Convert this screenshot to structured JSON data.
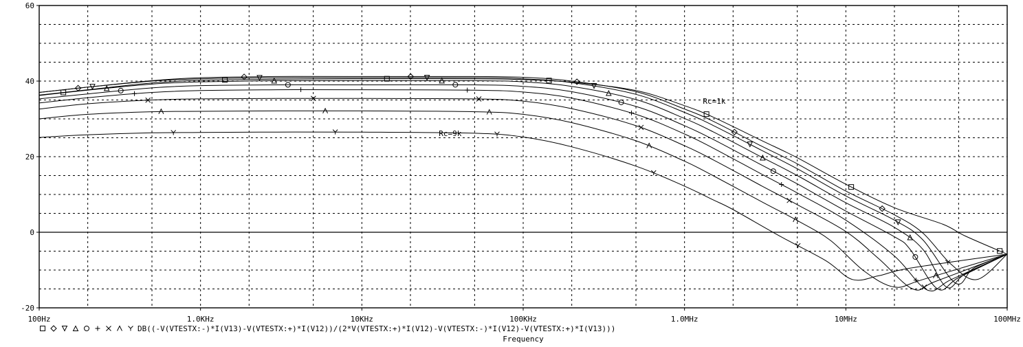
{
  "chart_data": {
    "type": "line",
    "xlabel": "Frequency",
    "x_scale": "log",
    "xlim_hz": [
      100,
      100000000
    ],
    "ylim": [
      -20,
      60
    ],
    "grid": true,
    "x_ticks": [
      {
        "value": 100,
        "label": "100Hz"
      },
      {
        "value": 1000,
        "label": "1.0KHz"
      },
      {
        "value": 10000,
        "label": "10KHz"
      },
      {
        "value": 100000,
        "label": "100KHz"
      },
      {
        "value": 1000000,
        "label": "1.0MHz"
      },
      {
        "value": 10000000,
        "label": "10MHz"
      },
      {
        "value": 100000000,
        "label": "100MHz"
      }
    ],
    "y_ticks": [
      {
        "value": 60,
        "label": "60"
      },
      {
        "value": 40,
        "label": "40"
      },
      {
        "value": 20,
        "label": "20"
      },
      {
        "value": 0,
        "label": "0"
      },
      {
        "value": -20,
        "label": "-20"
      }
    ],
    "legend_text": "DB((-V(VTESTX:-)*I(V13)-V(VTESTX:+)*I(V12))/(2*V(VTESTX:+)*I(V12)-V(VTESTX:-)*I(V12)-V(VTESTX:+)*I(V13)))",
    "legend_placement": "bottom-left",
    "legend_markers": [
      "square",
      "diamond",
      "triangle-down",
      "triangle-up",
      "circle",
      "plus",
      "cross",
      "lambda",
      "y-mark"
    ],
    "annotations": [
      {
        "text": "Rc=1k",
        "x": 1300000,
        "y": 34
      },
      {
        "text": "Rc=9k",
        "x": 30000,
        "y": 25.5
      }
    ],
    "series": [
      {
        "marker": "square",
        "x": [
          100,
          200,
          500,
          1000,
          3000,
          10000,
          50000,
          100000,
          200000,
          500000,
          1000000,
          1500000,
          3000000,
          5000000,
          10000000,
          20000000,
          40000000,
          55000000,
          100000000
        ],
        "y": [
          36.3,
          37.7,
          39.5,
          40.2,
          40.5,
          40.6,
          40.6,
          40.4,
          39.7,
          37.5,
          33.5,
          30.5,
          24.3,
          19.7,
          12.7,
          6.5,
          2.1,
          -1.0,
          -5.8
        ]
      },
      {
        "marker": "diamond",
        "x": [
          100,
          200,
          500,
          1000,
          3000,
          10000,
          50000,
          100000,
          200000,
          500000,
          1000000,
          1500000,
          3000000,
          5000000,
          10000000,
          20000000,
          30000000,
          45000000,
          65000000,
          100000000
        ],
        "y": [
          37.0,
          38.4,
          40.1,
          40.9,
          41.2,
          41.2,
          41.2,
          41.0,
          40.0,
          37.2,
          32.6,
          29.4,
          22.8,
          18.1,
          10.9,
          4.6,
          -0.2,
          -8.5,
          -12.5,
          -5.8
        ]
      },
      {
        "marker": "triangle-down",
        "x": [
          100,
          200,
          500,
          1000,
          3000,
          10000,
          50000,
          100000,
          200000,
          500000,
          1000000,
          1500000,
          3000000,
          5000000,
          10000000,
          20000000,
          30000000,
          48000000,
          62000000,
          100000000
        ],
        "y": [
          37.0,
          38.4,
          40.0,
          40.6,
          40.9,
          40.9,
          40.9,
          40.6,
          39.6,
          36.5,
          31.7,
          28.3,
          21.7,
          16.8,
          9.6,
          3.2,
          -2.0,
          -13.5,
          -9.5,
          -5.8
        ]
      },
      {
        "marker": "triangle-up",
        "x": [
          100,
          200,
          500,
          1000,
          3000,
          10000,
          50000,
          100000,
          200000,
          500000,
          1000000,
          1500000,
          3000000,
          5000000,
          10000000,
          20000000,
          30000000,
          42000000,
          55000000,
          100000000
        ],
        "y": [
          36.2,
          37.6,
          39.2,
          39.8,
          40.1,
          40.1,
          40.1,
          39.8,
          38.6,
          35.1,
          30.1,
          26.6,
          19.9,
          15.0,
          7.8,
          1.3,
          -4.5,
          -14.5,
          -11.0,
          -5.8
        ]
      },
      {
        "marker": "circle",
        "x": [
          100,
          200,
          500,
          1000,
          3000,
          10000,
          50000,
          100000,
          200000,
          500000,
          1000000,
          1500000,
          3000000,
          5000000,
          10000000,
          20000000,
          25000000,
          37000000,
          50000000,
          100000000
        ],
        "y": [
          35.3,
          36.6,
          38.2,
          38.8,
          39.0,
          39.0,
          39.0,
          38.6,
          37.2,
          33.3,
          28.2,
          24.6,
          17.8,
          12.8,
          5.6,
          -1.2,
          -4.5,
          -15.0,
          -12.0,
          -5.8
        ]
      },
      {
        "marker": "plus",
        "x": [
          100,
          200,
          500,
          1000,
          3000,
          10000,
          50000,
          100000,
          200000,
          500000,
          1000000,
          1500000,
          3000000,
          5000000,
          10000000,
          20000000,
          32000000,
          45000000,
          100000000
        ],
        "y": [
          34.2,
          35.6,
          37.0,
          37.5,
          37.7,
          37.7,
          37.6,
          37.1,
          35.5,
          31.2,
          26.0,
          22.3,
          15.4,
          10.4,
          3.2,
          -6.3,
          -15.3,
          -12.5,
          -5.8
        ]
      },
      {
        "marker": "cross",
        "x": [
          100,
          200,
          500,
          1000,
          3000,
          10000,
          50000,
          100000,
          200000,
          500000,
          1000000,
          1500000,
          3000000,
          5000000,
          10000000,
          16000000,
          26000000,
          36000000,
          100000000
        ],
        "y": [
          32.6,
          34.0,
          35.0,
          35.3,
          35.4,
          35.4,
          35.3,
          34.7,
          32.7,
          28.2,
          22.9,
          19.2,
          12.3,
          7.3,
          0.2,
          -7.0,
          -15.0,
          -13.0,
          -5.8
        ]
      },
      {
        "marker": "lambda",
        "x": [
          100,
          200,
          500,
          1000,
          3000,
          10000,
          50000,
          100000,
          200000,
          500000,
          1000000,
          1500000,
          3000000,
          5000000,
          8000000,
          13000000,
          20000000,
          30000000,
          100000000
        ],
        "y": [
          30.0,
          31.2,
          31.9,
          32.0,
          32.1,
          32.1,
          31.9,
          31.2,
          29.0,
          24.2,
          18.8,
          15.0,
          8.1,
          3.1,
          -2.1,
          -10.3,
          -14.5,
          -12.5,
          -5.8
        ]
      },
      {
        "marker": "y-mark",
        "x": [
          100,
          200,
          500,
          1000,
          3000,
          10000,
          50000,
          100000,
          200000,
          500000,
          1000000,
          1500000,
          2000000,
          4000000,
          7500000,
          11000000,
          16000000,
          25000000,
          100000000
        ],
        "y": [
          25.1,
          25.8,
          26.3,
          26.4,
          26.5,
          26.5,
          26.2,
          25.2,
          22.6,
          17.5,
          12.2,
          8.6,
          6.0,
          -1.3,
          -7.5,
          -12.5,
          -11.5,
          -9.5,
          -5.8
        ]
      }
    ]
  }
}
